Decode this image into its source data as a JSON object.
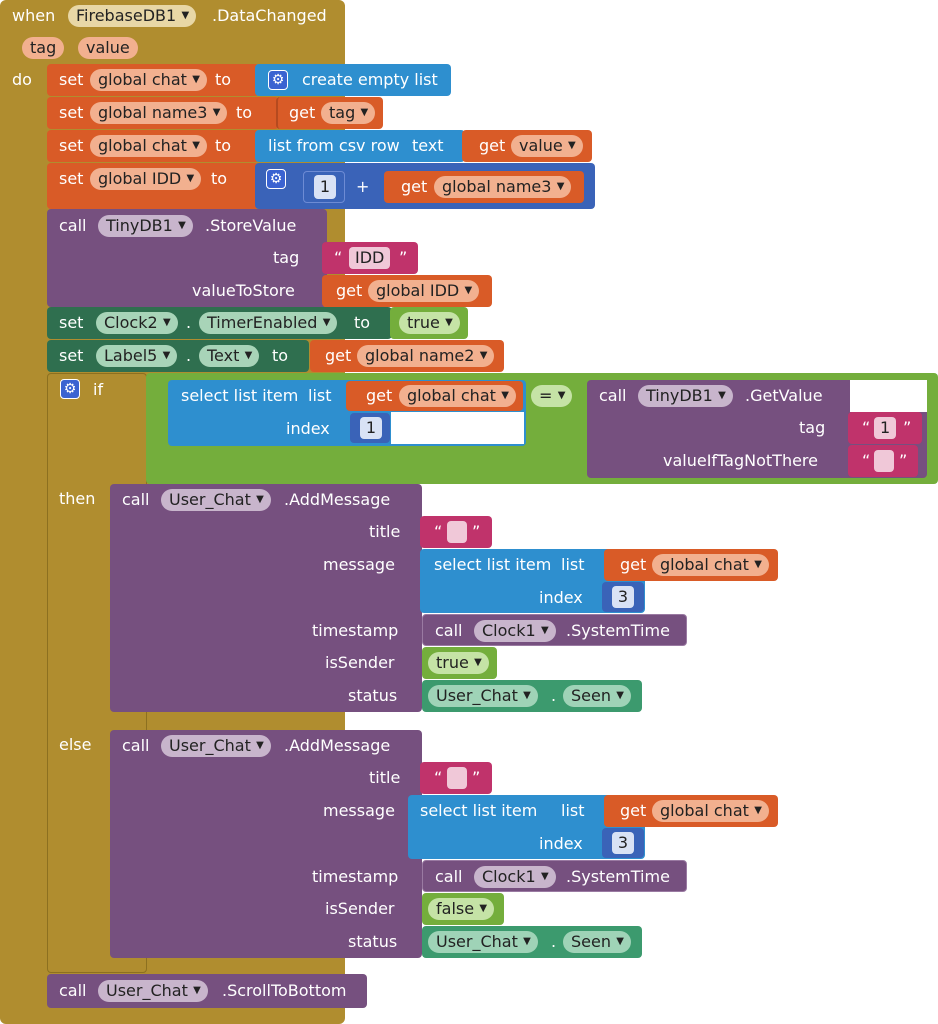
{
  "event": {
    "when": "when",
    "component": "FirebaseDB1",
    "event_name": ".DataChanged",
    "param1": "tag",
    "param2": "value",
    "do": "do"
  },
  "k": {
    "set": "set",
    "to": "to",
    "get": "get",
    "call": "call",
    "if": "if",
    "then": "then",
    "else": "else",
    "list": "list",
    "index": "index",
    "text": "text",
    "plus": "+",
    "dot": ".",
    "eq": "=",
    "oq": "“",
    "cq": "”"
  },
  "rows": {
    "r1": {
      "var": "global chat",
      "value": "create empty list"
    },
    "r2": {
      "var": "global name3",
      "get_var": "tag"
    },
    "r3": {
      "var": "global chat",
      "fn": "list from csv row",
      "get_var": "value"
    },
    "r4": {
      "var": "global IDD",
      "num": "1",
      "get_var": "global name3"
    },
    "r5": {
      "component": "TinyDB1",
      "method": ".StoreValue",
      "tag_label": "tag",
      "tag_value": "IDD",
      "value_label": "valueToStore",
      "get_var": "global IDD"
    },
    "r6": {
      "component": "Clock2",
      "prop": "TimerEnabled",
      "value": "true"
    },
    "r7": {
      "component": "Label5",
      "prop": "Text",
      "get_var": "global name2"
    }
  },
  "cond": {
    "select": "select list item",
    "get_var": "global chat",
    "index": "1",
    "component": "TinyDB1",
    "method": ".GetValue",
    "tag_label": "tag",
    "tag_value": "1",
    "default_label": "valueIfTagNotThere"
  },
  "then_block": {
    "component": "User_Chat",
    "method": ".AddMessage",
    "title_label": "title",
    "message_label": "message",
    "select": "select list item",
    "get_var": "global chat",
    "index": "3",
    "timestamp_label": "timestamp",
    "clock": "Clock1",
    "clock_method": ".SystemTime",
    "sender_label": "isSender",
    "sender": "true",
    "status_label": "status",
    "status_comp": "User_Chat",
    "status_val": "Seen"
  },
  "else_block": {
    "component": "User_Chat",
    "method": ".AddMessage",
    "title_label": "title",
    "message_label": "message",
    "select": "select list item",
    "get_var": "global chat",
    "index": "3",
    "timestamp_label": "timestamp",
    "clock": "Clock1",
    "clock_method": ".SystemTime",
    "sender_label": "isSender",
    "sender": "false",
    "status_label": "status",
    "status_comp": "User_Chat",
    "status_val": "Seen"
  },
  "final": {
    "component": "User_Chat",
    "method": ".ScrollToBottom"
  },
  "colors": {
    "event": "#b08d2f",
    "variable": "#d95b27",
    "list": "#2e8fcf",
    "math": "#3a63b8",
    "component": "#76507f",
    "setter": "#2f6f4f",
    "logic": "#74ae3c",
    "text": "#c0336b"
  }
}
